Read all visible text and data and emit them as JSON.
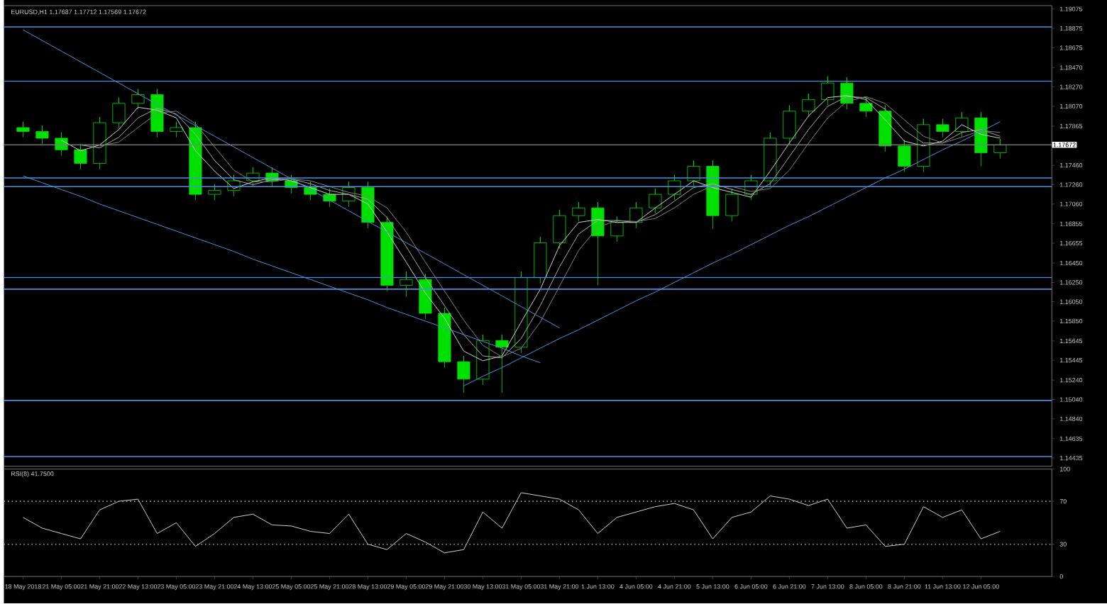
{
  "chart_data": [
    {
      "type": "candlestick",
      "title": "EURUSD,H1 1.17687 1.17712 1.17569 1.17672",
      "color": "#00e000",
      "tick_labels": "y",
      "categories": [
        null,
        null,
        null,
        null,
        null,
        null,
        null,
        null,
        null,
        null,
        null,
        null,
        null,
        null,
        null,
        null,
        null,
        null,
        null,
        null,
        null,
        null,
        null,
        null,
        null,
        null,
        null,
        null,
        null,
        null,
        null,
        null,
        null,
        null,
        null,
        null,
        null,
        null,
        null,
        null,
        null,
        null,
        null,
        null,
        null,
        null,
        null,
        null,
        null,
        null,
        null,
        null
      ],
      "ohlc": [
        [
          1.1785,
          1.1791,
          1.1775,
          1.1781
        ],
        [
          1.1781,
          1.1787,
          1.1768,
          1.1774
        ],
        [
          1.1774,
          1.178,
          1.1756,
          1.1762
        ],
        [
          1.1762,
          1.1768,
          1.1742,
          1.1748
        ],
        [
          1.1748,
          1.1796,
          1.1742,
          1.179
        ],
        [
          1.179,
          1.1816,
          1.1784,
          1.181
        ],
        [
          1.181,
          1.1825,
          1.1804,
          1.1819
        ],
        [
          1.1819,
          1.1825,
          1.1775,
          1.1781
        ],
        [
          1.1781,
          1.1791,
          1.1775,
          1.1785
        ],
        [
          1.1785,
          1.1791,
          1.171,
          1.1716
        ],
        [
          1.1716,
          1.1726,
          1.171,
          1.172
        ],
        [
          1.172,
          1.1736,
          1.1714,
          1.173
        ],
        [
          1.173,
          1.1744,
          1.1724,
          1.1738
        ],
        [
          1.1738,
          1.1744,
          1.1724,
          1.173
        ],
        [
          1.173,
          1.1736,
          1.1717,
          1.1723
        ],
        [
          1.1723,
          1.1729,
          1.171,
          1.1716
        ],
        [
          1.1716,
          1.1722,
          1.1703,
          1.1709
        ],
        [
          1.1709,
          1.1729,
          1.1703,
          1.1723
        ],
        [
          1.1723,
          1.1729,
          1.1681,
          1.1687
        ],
        [
          1.1687,
          1.1693,
          1.1616,
          1.1622
        ],
        [
          1.1622,
          1.1636,
          1.161,
          1.1628
        ],
        [
          1.1628,
          1.1634,
          1.1587,
          1.1593
        ],
        [
          1.1593,
          1.1599,
          1.1537,
          1.1543
        ],
        [
          1.1543,
          1.1549,
          1.1511,
          1.1525
        ],
        [
          1.1525,
          1.1571,
          1.1519,
          1.1565
        ],
        [
          1.1565,
          1.1571,
          1.1511,
          1.1558
        ],
        [
          1.1558,
          1.1636,
          1.1552,
          1.163
        ],
        [
          1.163,
          1.1672,
          1.1624,
          1.1666
        ],
        [
          1.1666,
          1.17,
          1.166,
          1.1694
        ],
        [
          1.1694,
          1.1708,
          1.1688,
          1.1702
        ],
        [
          1.1702,
          1.1708,
          1.1622,
          1.1673
        ],
        [
          1.1673,
          1.1693,
          1.1667,
          1.1687
        ],
        [
          1.1687,
          1.1708,
          1.1681,
          1.1702
        ],
        [
          1.1702,
          1.1722,
          1.1696,
          1.1716
        ],
        [
          1.1716,
          1.1736,
          1.171,
          1.173
        ],
        [
          1.173,
          1.1751,
          1.1724,
          1.1745
        ],
        [
          1.1745,
          1.1751,
          1.168,
          1.1694
        ],
        [
          1.1694,
          1.1722,
          1.1688,
          1.1716
        ],
        [
          1.1716,
          1.1736,
          1.171,
          1.173
        ],
        [
          1.173,
          1.178,
          1.1724,
          1.1774
        ],
        [
          1.1774,
          1.1808,
          1.1768,
          1.1802
        ],
        [
          1.1802,
          1.182,
          1.1796,
          1.1814
        ],
        [
          1.1814,
          1.1838,
          1.1808,
          1.1831
        ],
        [
          1.1831,
          1.1837,
          1.1804,
          1.181
        ],
        [
          1.181,
          1.1816,
          1.1796,
          1.1802
        ],
        [
          1.1802,
          1.1808,
          1.176,
          1.1766
        ],
        [
          1.1766,
          1.1772,
          1.1739,
          1.1745
        ],
        [
          1.1745,
          1.1794,
          1.1739,
          1.1788
        ],
        [
          1.1788,
          1.1794,
          1.1775,
          1.1781
        ],
        [
          1.1781,
          1.1801,
          1.1775,
          1.1795
        ],
        [
          1.1795,
          1.1801,
          1.1745,
          1.1759
        ],
        [
          1.1759,
          1.1773,
          1.1753,
          1.1767
        ]
      ],
      "series": [
        {
          "type": "line",
          "color": "#d0d0d0",
          "values": [
            null,
            null,
            1.1772,
            1.1761,
            1.1767,
            1.1783,
            1.1806,
            1.1803,
            1.1795,
            1.1761,
            1.174,
            1.1722,
            1.1729,
            1.1733,
            1.173,
            1.1723,
            1.1716,
            1.1716,
            1.1706,
            1.1677,
            1.1646,
            1.1614,
            1.1588,
            1.1554,
            1.1544,
            1.1549,
            1.1584,
            1.1618,
            1.1663,
            1.1687,
            1.169,
            1.1687,
            1.1687,
            1.1702,
            1.1716,
            1.173,
            1.1723,
            1.1718,
            1.1713,
            1.174,
            1.1769,
            1.1797,
            1.1816,
            1.1818,
            1.1814,
            1.1793,
            1.1771,
            1.1766,
            1.1771,
            1.1788,
            1.1778,
            1.1774
          ]
        },
        {
          "type": "line",
          "color": "#a8a8a8",
          "values": [
            null,
            null,
            null,
            1.1767,
            1.1764,
            1.1775,
            1.1795,
            1.1805,
            1.1799,
            1.1778,
            1.1751,
            1.1731,
            1.1726,
            1.1731,
            1.1732,
            1.1727,
            1.172,
            1.1716,
            1.1711,
            1.1692,
            1.1662,
            1.163,
            1.1601,
            1.1571,
            1.1549,
            1.1547,
            1.1567,
            1.1601,
            1.1641,
            1.1675,
            1.1689,
            1.1689,
            1.1687,
            1.1695,
            1.1709,
            1.1723,
            1.1727,
            1.1721,
            1.1716,
            1.1727,
            1.1755,
            1.1783,
            1.1807,
            1.1817,
            1.1816,
            1.1804,
            1.1782,
            1.1769,
            1.1769,
            1.178,
            1.1783,
            1.1776
          ]
        },
        {
          "type": "line",
          "color": "#808080",
          "values": [
            null,
            null,
            null,
            null,
            1.1766,
            1.177,
            1.1785,
            1.18,
            1.1802,
            1.1789,
            1.1765,
            1.1741,
            1.1729,
            1.1729,
            1.1732,
            1.173,
            1.1724,
            1.1718,
            1.1714,
            1.1702,
            1.1677,
            1.1646,
            1.1616,
            1.1586,
            1.156,
            1.1548,
            1.1557,
            1.1584,
            1.1621,
            1.1658,
            1.1682,
            1.1689,
            1.1688,
            1.1691,
            1.1702,
            1.1716,
            1.1725,
            1.1724,
            1.1719,
            1.1722,
            1.1741,
            1.1769,
            1.1795,
            1.1812,
            1.1817,
            1.181,
            1.1793,
            1.1776,
            1.1769,
            1.1775,
            1.1782,
            1.178
          ]
        },
        {
          "type": "line",
          "color": "#4a8fdc",
          "values": [
            1.1886,
            1.1875,
            1.1864,
            1.1853,
            1.1842,
            1.1831,
            1.182,
            1.1809,
            1.1798,
            1.1787,
            1.1776,
            1.1765,
            1.1754,
            1.1743,
            1.1732,
            1.1721,
            1.171,
            1.1699,
            1.1688,
            1.1677,
            1.1666,
            1.1655,
            1.1644,
            1.1633,
            1.1622,
            1.1611,
            1.16,
            1.1589,
            1.1578,
            null,
            null,
            null,
            null,
            null,
            null,
            null,
            null,
            null,
            null,
            null,
            null,
            null,
            null,
            null,
            null,
            null,
            null,
            null,
            null,
            null,
            null,
            null
          ]
        },
        {
          "type": "line",
          "color": "#4a8fdc",
          "values": [
            1.1735,
            1.1728,
            1.1721,
            1.1714,
            1.1706,
            1.1699,
            1.1692,
            1.1685,
            1.1678,
            1.1671,
            1.1664,
            1.1657,
            1.1649,
            1.1642,
            1.1635,
            1.1628,
            1.1621,
            1.1614,
            1.1607,
            1.1599,
            1.1592,
            1.1585,
            1.1578,
            1.1571,
            1.1564,
            1.1557,
            1.1549,
            1.1542,
            null,
            null,
            null,
            null,
            null,
            null,
            null,
            null,
            null,
            null,
            null,
            null,
            null,
            null,
            null,
            null,
            null,
            null,
            null,
            null,
            null,
            null,
            null,
            null
          ]
        },
        {
          "type": "line",
          "color": "#4a8fdc",
          "values": [
            null,
            null,
            null,
            null,
            null,
            null,
            null,
            null,
            null,
            null,
            null,
            null,
            null,
            null,
            null,
            null,
            null,
            null,
            null,
            null,
            null,
            null,
            null,
            1.1518,
            1.1528,
            1.1537,
            1.1547,
            1.1557,
            1.1567,
            1.1576,
            1.1586,
            1.1596,
            1.1606,
            1.1615,
            1.1625,
            1.1635,
            1.1645,
            1.1654,
            1.1664,
            1.1674,
            1.1684,
            1.1693,
            1.1703,
            1.1713,
            1.1723,
            1.1733,
            1.1742,
            1.1752,
            1.1762,
            1.1771,
            1.1781,
            1.1791
          ]
        }
      ],
      "ref_lines": [
        {
          "axis": "y",
          "value": 1.1889,
          "color": "#4a8fdc"
        },
        {
          "axis": "y",
          "value": 1.1833,
          "color": "#4a8fdc"
        },
        {
          "axis": "y",
          "value": 1.17672,
          "label": "1.17672",
          "color": "#808080"
        },
        {
          "axis": "y",
          "value": 1.1733,
          "color": "#4a8fdc"
        },
        {
          "axis": "y",
          "value": 1.1724,
          "color": "#4a8fdc"
        },
        {
          "axis": "y",
          "value": 1.163,
          "color": "#4a8fdc"
        },
        {
          "axis": "y",
          "value": 1.1618,
          "color": "#4a8fdc"
        },
        {
          "axis": "y",
          "value": 1.1503,
          "color": "#4a8fdc"
        },
        {
          "axis": "y",
          "value": 1.1445,
          "color": "#4a8fdc"
        }
      ],
      "ylim": [
        1.1435,
        1.1911
      ],
      "yticks": [
        {
          "value": 1.19075,
          "label": "1.19075"
        },
        {
          "value": 1.18875,
          "label": "1.18875"
        },
        {
          "value": 1.18675,
          "label": "1.18675"
        },
        {
          "value": 1.1847,
          "label": "1.18470"
        },
        {
          "value": 1.1827,
          "label": "1.18270"
        },
        {
          "value": 1.1807,
          "label": "1.18070"
        },
        {
          "value": 1.17865,
          "label": "1.17865"
        },
        {
          "value": 1.1746,
          "label": "1.17460"
        },
        {
          "value": 1.1726,
          "label": "1.17260"
        },
        {
          "value": 1.1706,
          "label": "1.17060"
        },
        {
          "value": 1.16855,
          "label": "1.16855"
        },
        {
          "value": 1.16655,
          "label": "1.16655"
        },
        {
          "value": 1.1645,
          "label": "1.16450"
        },
        {
          "value": 1.1625,
          "label": "1.16250"
        },
        {
          "value": 1.1605,
          "label": "1.16050"
        },
        {
          "value": 1.1585,
          "label": "1.15850"
        },
        {
          "value": 1.15645,
          "label": "1.15645"
        },
        {
          "value": 1.15445,
          "label": "1.15445"
        },
        {
          "value": 1.1524,
          "label": "1.15240"
        },
        {
          "value": 1.1504,
          "label": "1.15040"
        },
        {
          "value": 1.1484,
          "label": "1.14840"
        },
        {
          "value": 1.14635,
          "label": "1.14635"
        },
        {
          "value": 1.14435,
          "label": "1.14435"
        }
      ]
    },
    {
      "type": "line",
      "title": "RSI(8) 41.7500",
      "color": "#d0d0d0",
      "categories": [
        "18 May 2018",
        null,
        "21 May 05:00",
        null,
        "21 May 21:00",
        null,
        "22 May 13:00",
        null,
        "23 May 05:00",
        null,
        "23 May 21:00",
        null,
        "24 May 13:00",
        null,
        "25 May 05:00",
        null,
        "25 May 21:00",
        null,
        "28 May 13:00",
        null,
        "29 May 05:00",
        null,
        "29 May 21:00",
        null,
        "30 May 13:00",
        null,
        "31 May 05:00",
        null,
        "31 May 21:00",
        null,
        "1 Jun 13:00",
        null,
        "4 Jun 05:00",
        null,
        "4 Jun 21:00",
        null,
        "5 Jun 13:00",
        null,
        "6 Jun 05:00",
        null,
        "6 Jun 21:00",
        null,
        "7 Jun 13:00",
        null,
        "8 Jun 05:00",
        null,
        "8 Jun 21:00",
        null,
        "11 Jun 13:00",
        null,
        "12 Jun 05:00",
        null
      ],
      "values": [
        55,
        45,
        40,
        35,
        62,
        70,
        72,
        40,
        50,
        28,
        40,
        55,
        58,
        48,
        47,
        42,
        40,
        58,
        30,
        25,
        40,
        32,
        22,
        25,
        60,
        45,
        78,
        75,
        72,
        62,
        40,
        55,
        60,
        65,
        68,
        62,
        35,
        55,
        60,
        75,
        72,
        66,
        72,
        45,
        48,
        28,
        30,
        65,
        55,
        62,
        35,
        42
      ],
      "ref_lines": [
        {
          "axis": "y",
          "value": 70,
          "color": "#a0a0a0",
          "line_style": "dotted"
        },
        {
          "axis": "y",
          "value": 30,
          "color": "#a0a0a0",
          "line_style": "dotted"
        }
      ],
      "ylim": [
        0,
        100
      ],
      "yticks": [
        100,
        70,
        30,
        0
      ]
    }
  ]
}
